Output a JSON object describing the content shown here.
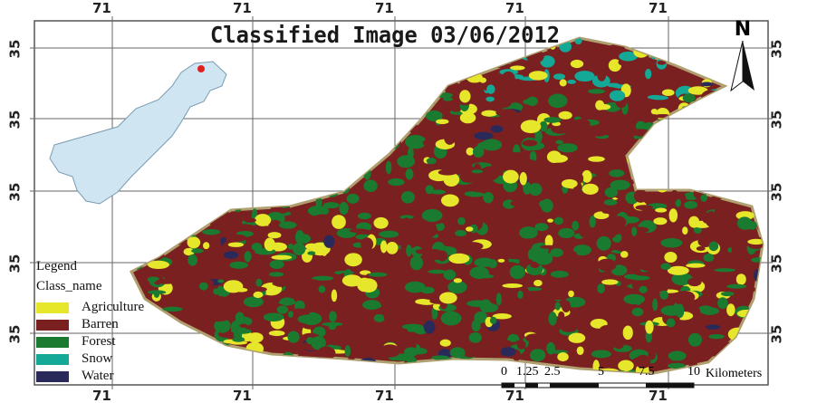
{
  "title": "Classified Image 03/06/2012",
  "grid": {
    "top_labels": [
      "71",
      "71",
      "71",
      "71",
      "71"
    ],
    "bottom_labels": [
      "71",
      "71",
      "71",
      "71",
      "71"
    ],
    "left_labels": [
      "35",
      "35",
      "35",
      "35",
      "35"
    ],
    "right_labels": [
      "35",
      "35",
      "35",
      "35",
      "35"
    ]
  },
  "north_arrow": {
    "label": "N"
  },
  "legend": {
    "title": "Legend",
    "subtitle": "Class_name",
    "items": [
      {
        "label": "Agriculture",
        "color": "#e6e62a"
      },
      {
        "label": "Barren",
        "color": "#7a2020"
      },
      {
        "label": "Forest",
        "color": "#1a7a30"
      },
      {
        "label": "Snow",
        "color": "#14a896"
      },
      {
        "label": "Water",
        "color": "#2a2a5a"
      }
    ]
  },
  "scale_bar": {
    "ticks": [
      "0",
      "1.25",
      "2.5",
      "5",
      "7.5",
      "10"
    ],
    "unit": "Kilometers"
  },
  "inset": {
    "fill": "#cfe6f2",
    "highlight": "#e02020"
  }
}
